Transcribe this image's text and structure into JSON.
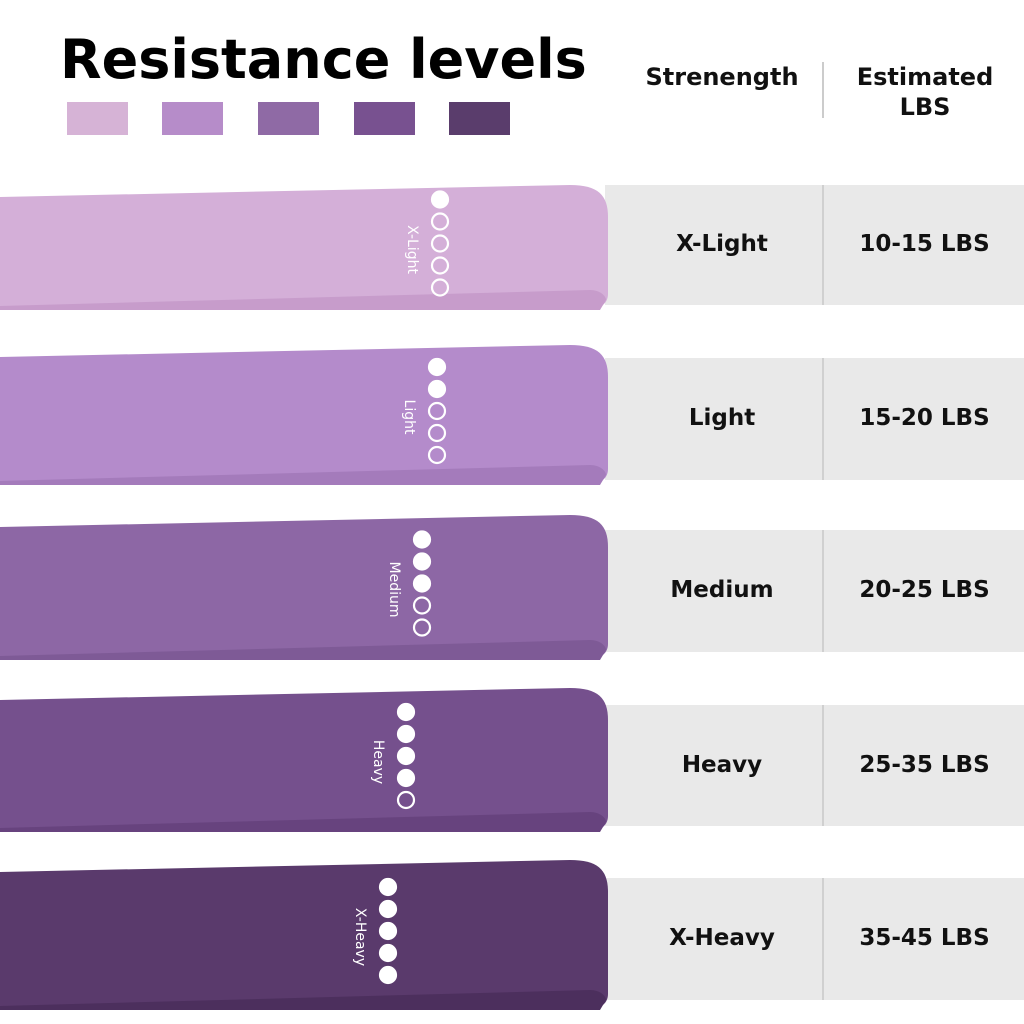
{
  "header": {
    "title": "Resistance levels",
    "col_strength": "Strenength",
    "col_lbs": "Estimated LBS"
  },
  "rows": [
    {
      "band_label": "X-Light",
      "strength": "X-Light",
      "lbs": "10-15 LBS"
    },
    {
      "band_label": "Light",
      "strength": "Light",
      "lbs": "15-20 LBS"
    },
    {
      "band_label": "Medium",
      "strength": "Medium",
      "lbs": "20-25 LBS"
    },
    {
      "band_label": "Heavy",
      "strength": "Heavy",
      "lbs": "25-35 LBS"
    },
    {
      "band_label": "X-Heavy",
      "strength": "X-Heavy",
      "lbs": "35-45 LBS"
    }
  ]
}
